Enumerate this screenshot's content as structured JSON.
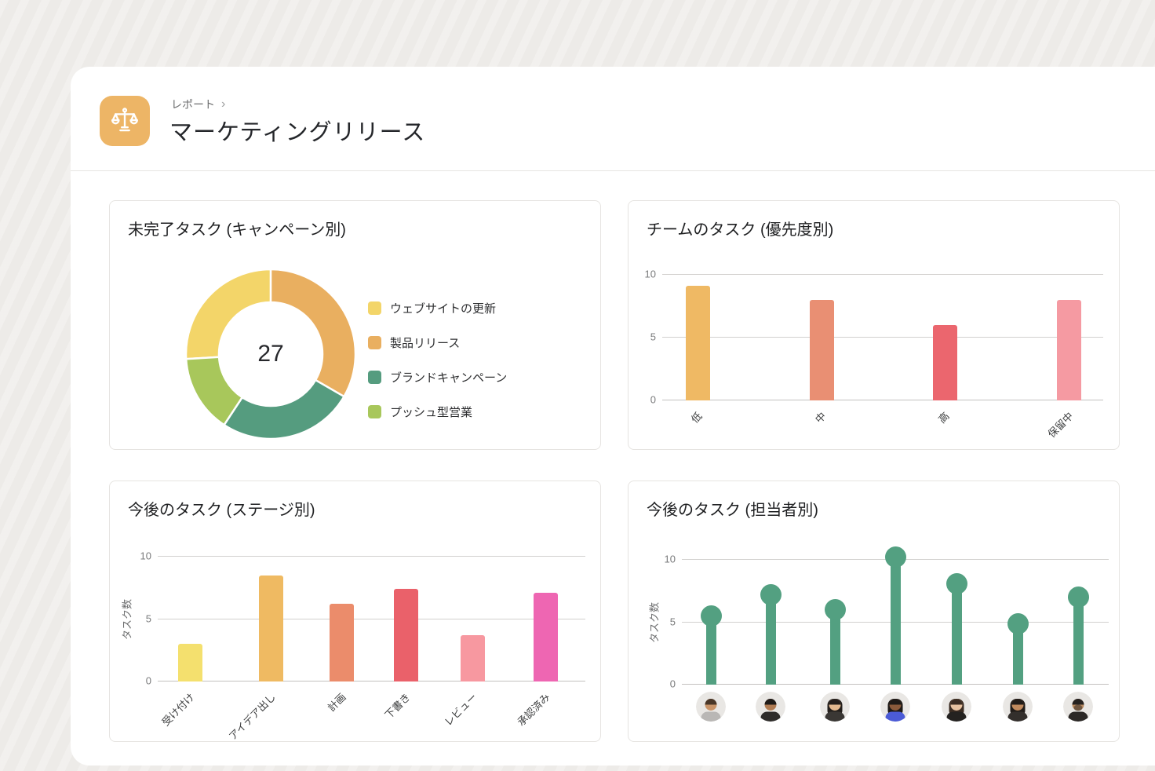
{
  "page": {
    "background": "#EDEBE8",
    "card_background": "#FFFFFF"
  },
  "header": {
    "icon": "balance-scale-icon",
    "icon_bg": "#EDB566",
    "breadcrumb": "レポート",
    "chevron": "›",
    "title": "マーケティングリリース"
  },
  "chart_data": [
    {
      "type": "pie",
      "subtype": "donut",
      "title": "未完了タスク (キャンペーン別)",
      "center_value": "27",
      "start_angle_deg": 266.7,
      "legend_position": "right",
      "segments": [
        {
          "label": "ウェブサイトの更新",
          "value": 7,
          "color": "#F3D569"
        },
        {
          "label": "製品リリース",
          "value": 9,
          "color": "#E9AF60"
        },
        {
          "label": "ブランドキャンペーン",
          "value": 7,
          "color": "#559C7F"
        },
        {
          "label": "プッシュ型営業",
          "value": 4,
          "color": "#A8C75B"
        }
      ]
    },
    {
      "type": "bar",
      "title": "チームのタスク (優先度別)",
      "categories": [
        "低",
        "中",
        "高",
        "保留中"
      ],
      "values": [
        9.1,
        8,
        6,
        8
      ],
      "colors": [
        "#EFB964",
        "#E98F73",
        "#EB666E",
        "#F59AA2"
      ],
      "xlabel": "",
      "ylabel": "",
      "ylim": [
        0,
        10
      ],
      "yticks": [
        0,
        5,
        10
      ],
      "grid": true
    },
    {
      "type": "bar",
      "title": "今後のタスク (ステージ別)",
      "categories": [
        "受け付け",
        "アイデア出し",
        "計画",
        "下書き",
        "レビュー",
        "承認済み"
      ],
      "values": [
        3,
        8.5,
        6.2,
        7.4,
        3.7,
        7.1
      ],
      "colors": [
        "#F4E06E",
        "#EFBA62",
        "#EB8C6B",
        "#EA616A",
        "#F798A0",
        "#EE66B2"
      ],
      "xlabel": "",
      "ylabel": "タスク数",
      "ylim": [
        0,
        10
      ],
      "yticks": [
        0,
        5,
        10
      ],
      "grid": true
    },
    {
      "type": "lollipop",
      "title": "今後のタスク (担当者別)",
      "categories": [
        "avatar-1",
        "avatar-2",
        "avatar-3",
        "avatar-4",
        "avatar-5",
        "avatar-6",
        "avatar-7"
      ],
      "values": [
        5.5,
        7.2,
        6,
        10.2,
        8.1,
        4.9,
        7
      ],
      "color": "#53A081",
      "xlabel": "",
      "ylabel": "タスク数",
      "ylim": [
        0,
        10
      ],
      "yticks": [
        0,
        5,
        10
      ],
      "grid": true,
      "avatars": [
        {
          "name": "avatar-1",
          "style": "short",
          "skin": "#C99469",
          "hair": "#4A3728",
          "shirt": "#B9B7B5",
          "beard": false
        },
        {
          "name": "avatar-2",
          "style": "short",
          "skin": "#B07B52",
          "hair": "#1F1B18",
          "shirt": "#2E2C2A",
          "beard": false
        },
        {
          "name": "avatar-3",
          "style": "long",
          "skin": "#E3B98F",
          "hair": "#241F1C",
          "shirt": "#3A3734",
          "beard": false
        },
        {
          "name": "avatar-4",
          "style": "long",
          "skin": "#8A5A3B",
          "hair": "#1E1A17",
          "shirt": "#4B5BD6",
          "beard": false
        },
        {
          "name": "avatar-5",
          "style": "long",
          "skin": "#E8C2A0",
          "hair": "#3B2C22",
          "shirt": "#242220",
          "beard": false
        },
        {
          "name": "avatar-6",
          "style": "long",
          "skin": "#C08A5E",
          "hair": "#211C19",
          "shirt": "#332F2C",
          "beard": false
        },
        {
          "name": "avatar-7",
          "style": "short",
          "skin": "#B98A60",
          "hair": "#262220",
          "shirt": "#2B2826",
          "beard": true
        }
      ]
    }
  ]
}
